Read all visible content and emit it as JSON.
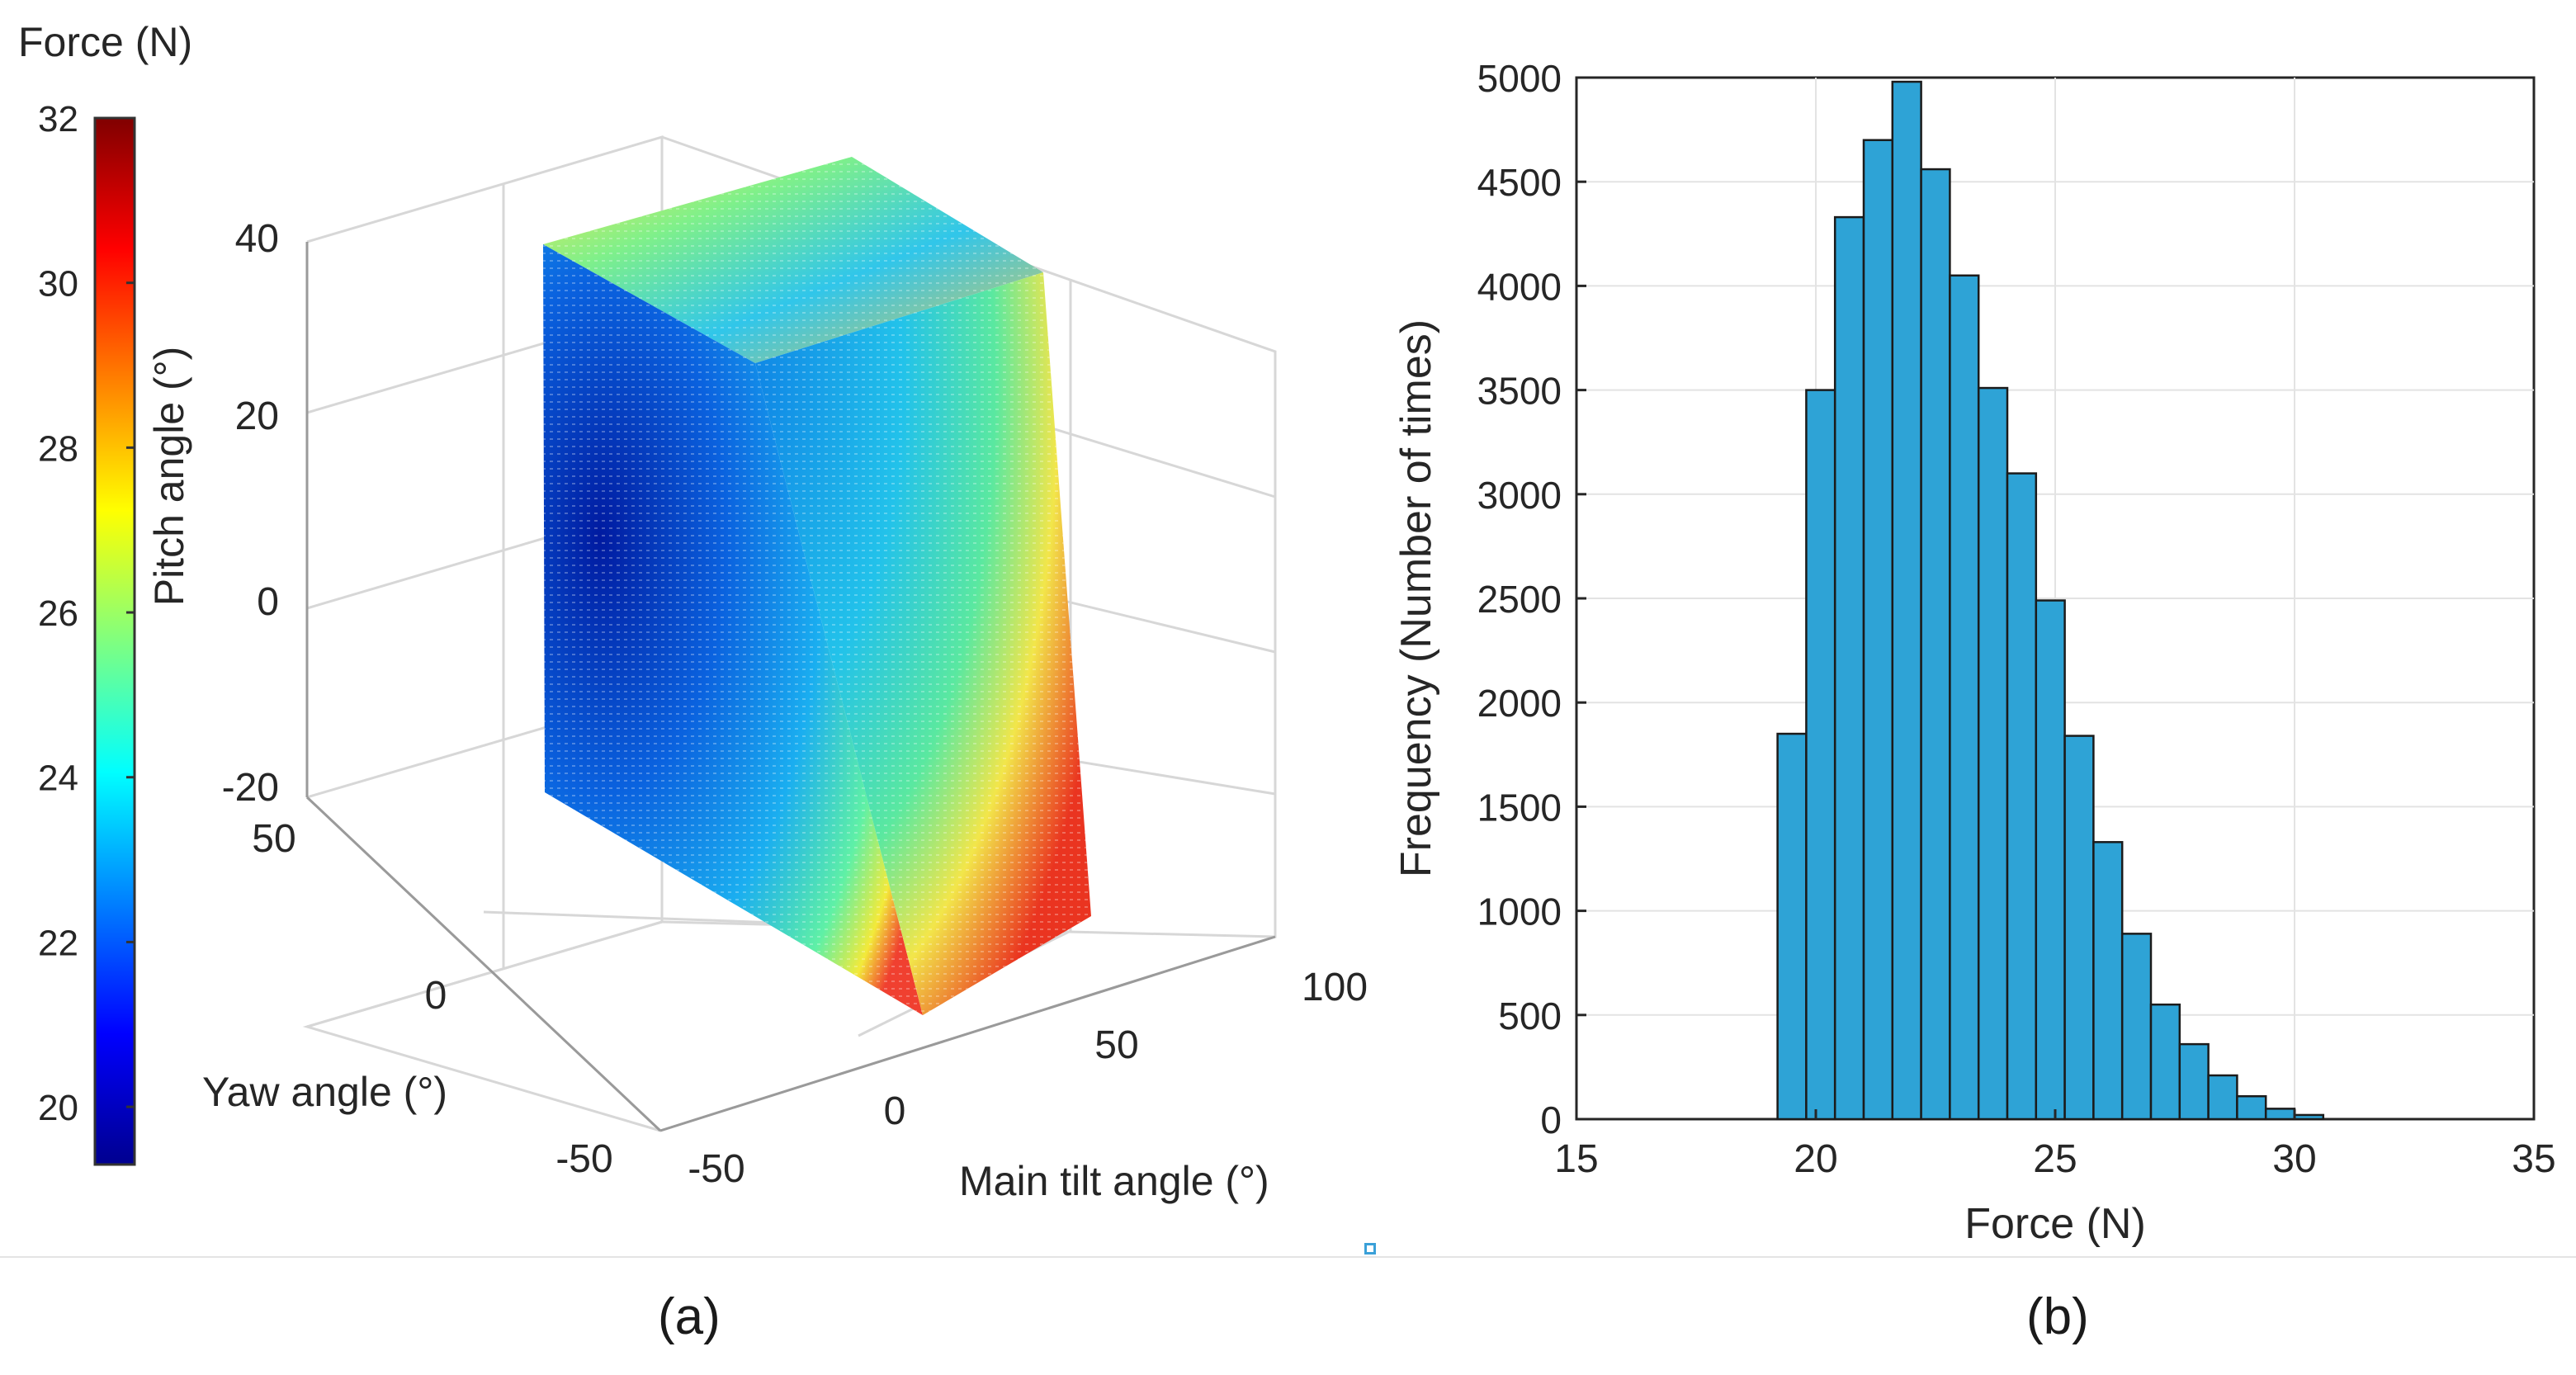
{
  "chart_data": [
    {
      "type": "scatter3d",
      "panel_caption": "(a)",
      "colorbar": {
        "title": "Force (N)",
        "ticks": [
          20,
          22,
          24,
          26,
          28,
          30,
          32
        ],
        "range": [
          19.3,
          32
        ],
        "colormap": "jet"
      },
      "axes": {
        "z": {
          "label": "Pitch angle (°)",
          "ticks": [
            -20,
            0,
            20,
            40
          ],
          "range": [
            -20,
            40
          ]
        },
        "y": {
          "label": "Yaw angle (°)",
          "ticks": [
            -50,
            0,
            50
          ],
          "range": [
            -50,
            50
          ]
        },
        "x": {
          "label": "Main tilt angle (°)",
          "ticks": [
            -50,
            0,
            50,
            100
          ],
          "range": [
            -50,
            100
          ]
        }
      }
    },
    {
      "type": "bar",
      "subtype": "histogram",
      "panel_caption": "(b)",
      "xlabel": "Force (N)",
      "ylabel": "Frequency  (Number of times)",
      "xlim": [
        15,
        35
      ],
      "ylim": [
        0,
        5000
      ],
      "xticks": [
        15,
        20,
        25,
        30,
        35
      ],
      "yticks": [
        0,
        500,
        1000,
        1500,
        2000,
        2500,
        3000,
        3500,
        4000,
        4500,
        5000
      ],
      "grid": true,
      "bar_color": "#2ea3d6",
      "bin_start": 19.2,
      "bin_width": 0.6,
      "values": [
        1850,
        3500,
        4330,
        4700,
        4980,
        4560,
        4050,
        3510,
        3100,
        2490,
        1840,
        1330,
        890,
        550,
        360,
        210,
        110,
        50,
        20
      ]
    }
  ]
}
